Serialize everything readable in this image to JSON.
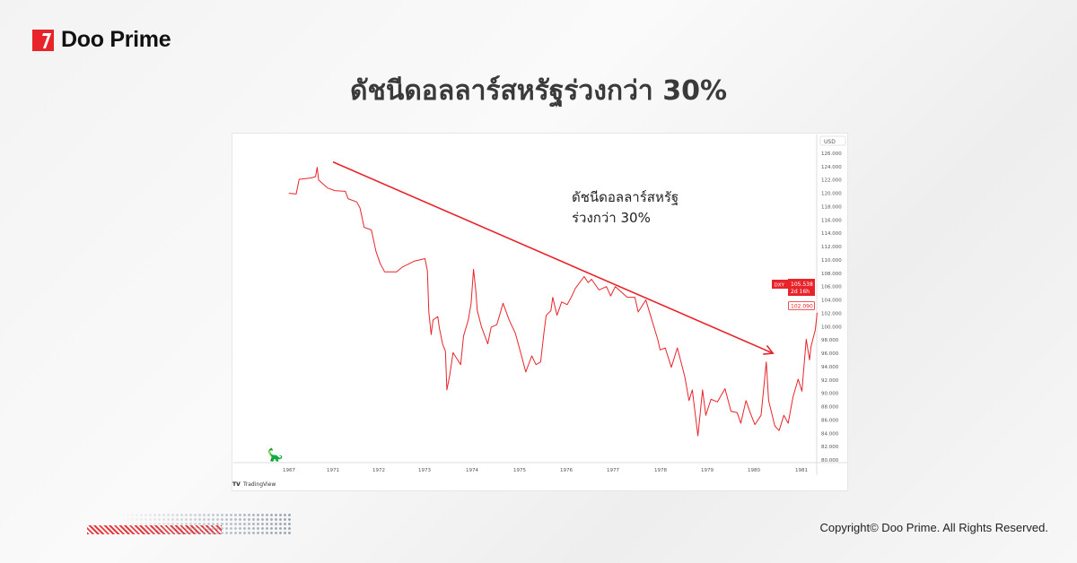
{
  "brand": {
    "name": "Doo Prime",
    "accent": "#e8242b"
  },
  "title": "ดัชนีดอลลาร์สหรัฐร่วงกว่า 30%",
  "copyright": "Copyright© Doo Prime. All Rights Reserved.",
  "chart_data": {
    "type": "line",
    "title": "",
    "annotation": [
      "ดัชนีดอลลาร์สหรัฐ",
      "ร่วงกว่า 30%"
    ],
    "currency_label": "USD",
    "symbol": "DXY",
    "last_price": "105.538",
    "countdown": "2d 16h",
    "marked_price": "102.090",
    "watermark": "TradingView",
    "line_color": "#e8242b",
    "trend_arrow": {
      "from": [
        1971.0,
        124.7
      ],
      "to": [
        1980.4,
        96.0
      ]
    },
    "ylim": [
      80,
      126
    ],
    "y_ticks": [
      "126.000",
      "124.000",
      "122.000",
      "120.000",
      "118.000",
      "116.000",
      "114.000",
      "112.000",
      "110.000",
      "108.000",
      "106.000",
      "104.000",
      "102.000",
      "100.000",
      "98.000",
      "96.000",
      "94.000",
      "92.000",
      "90.000",
      "88.000",
      "86.000",
      "84.000",
      "82.000",
      "80.000"
    ],
    "x_ticks": [
      "1967",
      "1971",
      "1972",
      "1973",
      "1974",
      "1975",
      "1976",
      "1977",
      "1978",
      "1979",
      "1980",
      "1981"
    ],
    "series": [
      {
        "points": [
          [
            1966.98,
            120.0
          ],
          [
            1967.65,
            119.9
          ],
          [
            1967.92,
            122.1
          ],
          [
            1968.47,
            122.2
          ],
          [
            1969.02,
            122.3
          ],
          [
            1969.42,
            122.5
          ],
          [
            1969.56,
            123.9
          ],
          [
            1969.69,
            122.0
          ],
          [
            1970.51,
            120.8
          ],
          [
            1971.04,
            120.4
          ],
          [
            1971.27,
            120.3
          ],
          [
            1971.33,
            119.2
          ],
          [
            1971.52,
            118.7
          ],
          [
            1971.59,
            117.8
          ],
          [
            1971.68,
            114.9
          ],
          [
            1971.84,
            114.5
          ],
          [
            1971.94,
            111.3
          ],
          [
            1972.03,
            109.5
          ],
          [
            1972.13,
            108.2
          ],
          [
            1972.39,
            108.2
          ],
          [
            1972.51,
            108.9
          ],
          [
            1972.77,
            109.8
          ],
          [
            1973.01,
            110.2
          ],
          [
            1973.06,
            108.4
          ],
          [
            1973.09,
            102.2
          ],
          [
            1973.14,
            98.8
          ],
          [
            1973.18,
            101.0
          ],
          [
            1973.28,
            101.5
          ],
          [
            1973.31,
            99.9
          ],
          [
            1973.38,
            97.4
          ],
          [
            1973.44,
            96.3
          ],
          [
            1973.47,
            90.5
          ],
          [
            1973.53,
            92.7
          ],
          [
            1973.6,
            96.1
          ],
          [
            1973.66,
            95.4
          ],
          [
            1973.76,
            94.3
          ],
          [
            1973.82,
            98.6
          ],
          [
            1973.92,
            101.0
          ],
          [
            1973.98,
            103.5
          ],
          [
            1974.03,
            108.6
          ],
          [
            1974.08,
            105.3
          ],
          [
            1974.11,
            102.4
          ],
          [
            1974.2,
            99.9
          ],
          [
            1974.33,
            97.4
          ],
          [
            1974.4,
            99.9
          ],
          [
            1974.52,
            100.3
          ],
          [
            1974.65,
            103.5
          ],
          [
            1974.78,
            101.0
          ],
          [
            1974.91,
            99.0
          ],
          [
            1975.04,
            95.6
          ],
          [
            1975.13,
            93.2
          ],
          [
            1975.26,
            95.6
          ],
          [
            1975.35,
            94.3
          ],
          [
            1975.45,
            94.7
          ],
          [
            1975.52,
            99.0
          ],
          [
            1975.57,
            101.7
          ],
          [
            1975.67,
            102.4
          ],
          [
            1975.71,
            104.4
          ],
          [
            1975.8,
            101.7
          ],
          [
            1975.9,
            103.7
          ],
          [
            1976.02,
            103.3
          ],
          [
            1976.12,
            104.6
          ],
          [
            1976.19,
            105.7
          ],
          [
            1976.38,
            107.5
          ],
          [
            1976.47,
            106.6
          ],
          [
            1976.54,
            107.1
          ],
          [
            1976.7,
            105.5
          ],
          [
            1976.86,
            106.0
          ],
          [
            1976.95,
            104.6
          ],
          [
            1977.05,
            106.0
          ],
          [
            1977.3,
            104.4
          ],
          [
            1977.46,
            104.4
          ],
          [
            1977.53,
            102.2
          ],
          [
            1977.69,
            104.0
          ],
          [
            1977.78,
            101.9
          ],
          [
            1977.94,
            98.1
          ],
          [
            1977.99,
            96.5
          ],
          [
            1978.1,
            96.8
          ],
          [
            1978.23,
            93.9
          ],
          [
            1978.36,
            96.8
          ],
          [
            1978.42,
            95.2
          ],
          [
            1978.52,
            92.5
          ],
          [
            1978.61,
            88.9
          ],
          [
            1978.68,
            90.5
          ],
          [
            1978.8,
            83.6
          ],
          [
            1978.9,
            90.5
          ],
          [
            1978.97,
            86.7
          ],
          [
            1979.08,
            89.1
          ],
          [
            1979.22,
            88.7
          ],
          [
            1979.38,
            90.7
          ],
          [
            1979.51,
            87.3
          ],
          [
            1979.64,
            87.1
          ],
          [
            1979.72,
            85.5
          ],
          [
            1979.83,
            88.9
          ],
          [
            1979.93,
            86.9
          ],
          [
            1980.02,
            85.3
          ],
          [
            1980.15,
            86.7
          ],
          [
            1980.26,
            94.7
          ],
          [
            1980.31,
            88.9
          ],
          [
            1980.44,
            85.1
          ],
          [
            1980.53,
            84.4
          ],
          [
            1980.63,
            86.7
          ],
          [
            1980.72,
            85.5
          ],
          [
            1980.82,
            89.4
          ],
          [
            1980.93,
            92.1
          ],
          [
            1981.01,
            90.3
          ],
          [
            1981.1,
            98.1
          ],
          [
            1981.17,
            95.0
          ],
          [
            1981.2,
            97.0
          ],
          [
            1981.29,
            99.5
          ],
          [
            1981.33,
            102.09
          ]
        ]
      }
    ]
  }
}
